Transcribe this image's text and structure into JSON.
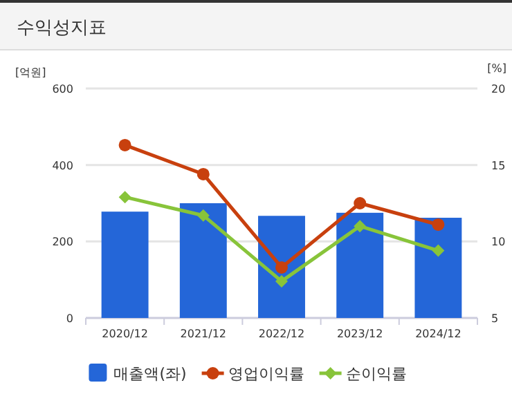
{
  "chart_data": {
    "type": "bar",
    "title": "수익성지표",
    "ylabel": "[억원]",
    "y2label": "[%]",
    "categories": [
      "2020/12",
      "2021/12",
      "2022/12",
      "2023/12",
      "2024/12"
    ],
    "series": [
      {
        "name": "매출액(좌)",
        "color": "#2466d8",
        "values": [
          278,
          300,
          267,
          275,
          262
        ]
      },
      {
        "name": "영업이익률",
        "type": "line",
        "axis": "y2",
        "marker": "circle",
        "color": "#c8400e",
        "values": [
          16.3,
          14.4,
          8.3,
          12.5,
          11.1
        ]
      },
      {
        "name": "순이익률",
        "type": "line",
        "axis": "y2",
        "marker": "diamond",
        "color": "#88c43a",
        "values": [
          12.9,
          11.7,
          7.4,
          11.0,
          9.4
        ]
      }
    ],
    "ylim": [
      0,
      600
    ],
    "yticks": [
      0,
      200,
      400,
      600
    ],
    "y2lim": [
      5,
      20
    ],
    "y2ticks": [
      5,
      10,
      15,
      20
    ],
    "grid": "y",
    "legend": "bottom"
  }
}
